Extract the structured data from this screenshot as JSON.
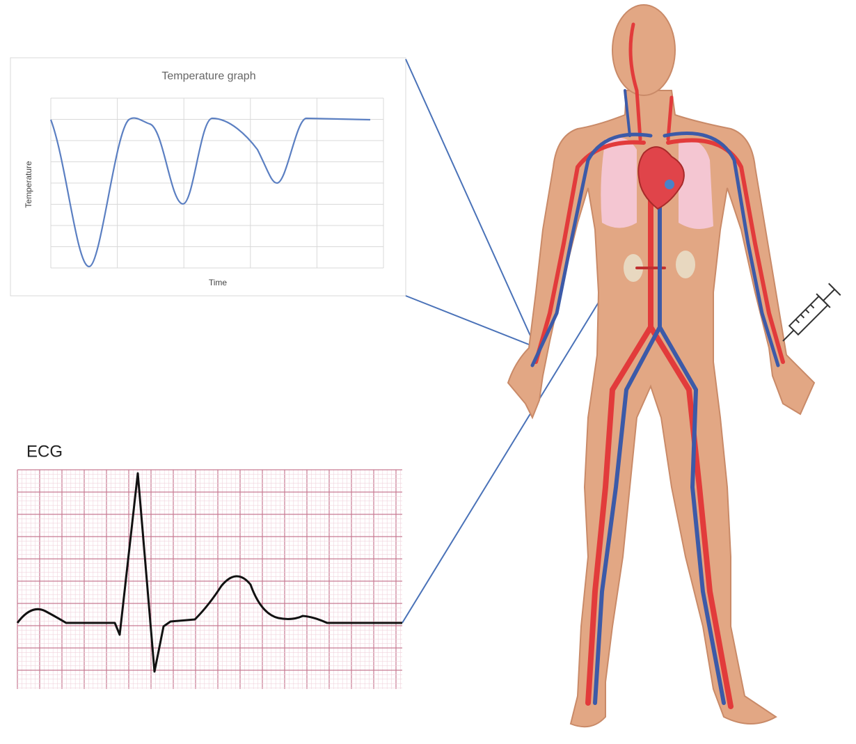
{
  "temperature_graph": {
    "title": "Temperature graph",
    "y_label": "Temperature",
    "x_label": "Time"
  },
  "ecg": {
    "label": "ECG"
  }
}
